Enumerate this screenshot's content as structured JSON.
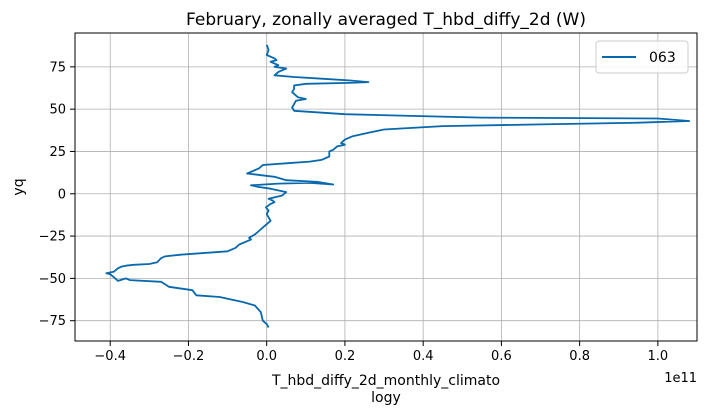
{
  "chart_data": {
    "type": "line",
    "title": "February, zonally averaged T_hbd_diffy_2d (W)",
    "xlabel_line1": "T_hbd_diffy_2d_monthly_climato",
    "xlabel_line2": "logy",
    "ylabel": "yq",
    "x_offset_label": "1e11",
    "x_scale_factor": 100000000000.0,
    "xlim": [
      -0.49,
      1.1
    ],
    "ylim": [
      -87,
      95
    ],
    "xticks": [
      -0.4,
      -0.2,
      0.0,
      0.2,
      0.4,
      0.6,
      0.8,
      1.0
    ],
    "xtick_labels": [
      "−0.4",
      "−0.2",
      "0.0",
      "0.2",
      "0.4",
      "0.6",
      "0.8",
      "1.0"
    ],
    "yticks": [
      -75,
      -50,
      -25,
      0,
      25,
      50,
      75
    ],
    "ytick_labels": [
      "−75",
      "−50",
      "−25",
      "0",
      "25",
      "50",
      "75"
    ],
    "grid": true,
    "legend_position": "top-right",
    "series": [
      {
        "name": "063",
        "color": "#0868ac",
        "x_scaled": [
          0.005,
          0.0,
          -0.01,
          -0.015,
          -0.03,
          -0.06,
          -0.12,
          -0.18,
          -0.19,
          -0.25,
          -0.27,
          -0.35,
          -0.36,
          -0.38,
          -0.39,
          -0.395,
          -0.4,
          -0.41,
          -0.39,
          -0.38,
          -0.37,
          -0.36,
          -0.34,
          -0.3,
          -0.28,
          -0.27,
          -0.26,
          -0.22,
          -0.1,
          -0.08,
          -0.07,
          -0.05,
          -0.04,
          -0.045,
          -0.03,
          -0.02,
          -0.01,
          0.0,
          0.01,
          0.0,
          0.005,
          -0.002,
          0.01,
          0.02,
          0.015,
          0.005,
          0.04,
          0.05,
          0.01,
          -0.02,
          -0.04,
          0.03,
          0.11,
          0.17,
          0.13,
          0.05,
          0.02,
          -0.05,
          -0.02,
          -0.01,
          0.05,
          0.11,
          0.14,
          0.16,
          0.16,
          0.17,
          0.18,
          0.2,
          0.19,
          0.2,
          0.22,
          0.26,
          0.3,
          0.45,
          0.7,
          0.95,
          1.08,
          1.0,
          0.55,
          0.2,
          0.07,
          0.065,
          0.07,
          0.075,
          0.1,
          0.08,
          0.07,
          0.065,
          0.07,
          0.07,
          0.07,
          0.1,
          0.21,
          0.26,
          0.21,
          0.14,
          0.07,
          0.02,
          0.03,
          0.05,
          0.02,
          0.03,
          0.01,
          0.025,
          0.02,
          0.0,
          0.005,
          0.0
        ],
        "y": [
          -79,
          -77,
          -75,
          -70,
          -66,
          -64,
          -61,
          -60,
          -57,
          -55,
          -52,
          -51,
          -50,
          -51.5,
          -49.5,
          -48.5,
          -47.5,
          -47,
          -46,
          -44,
          -43,
          -42.5,
          -42,
          -41.5,
          -40.5,
          -38,
          -37,
          -36,
          -34,
          -32,
          -30,
          -28,
          -27,
          -26,
          -24,
          -22,
          -20,
          -18,
          -16,
          -12,
          -10,
          -8,
          -6,
          -5,
          -4,
          -3,
          -1,
          1,
          3,
          4,
          5,
          6,
          6.5,
          5.5,
          7,
          8,
          10,
          12,
          15,
          17,
          18,
          19,
          20,
          22,
          25,
          26,
          28,
          29,
          30,
          32,
          34,
          36,
          38,
          40,
          41,
          42,
          43,
          44.5,
          45,
          47,
          49,
          51,
          53,
          55,
          56,
          57,
          59,
          60,
          62,
          63,
          64,
          65,
          65.5,
          66,
          67,
          68,
          69,
          70,
          72,
          74,
          75,
          76,
          78,
          79,
          80,
          82,
          85,
          88
        ]
      }
    ]
  }
}
